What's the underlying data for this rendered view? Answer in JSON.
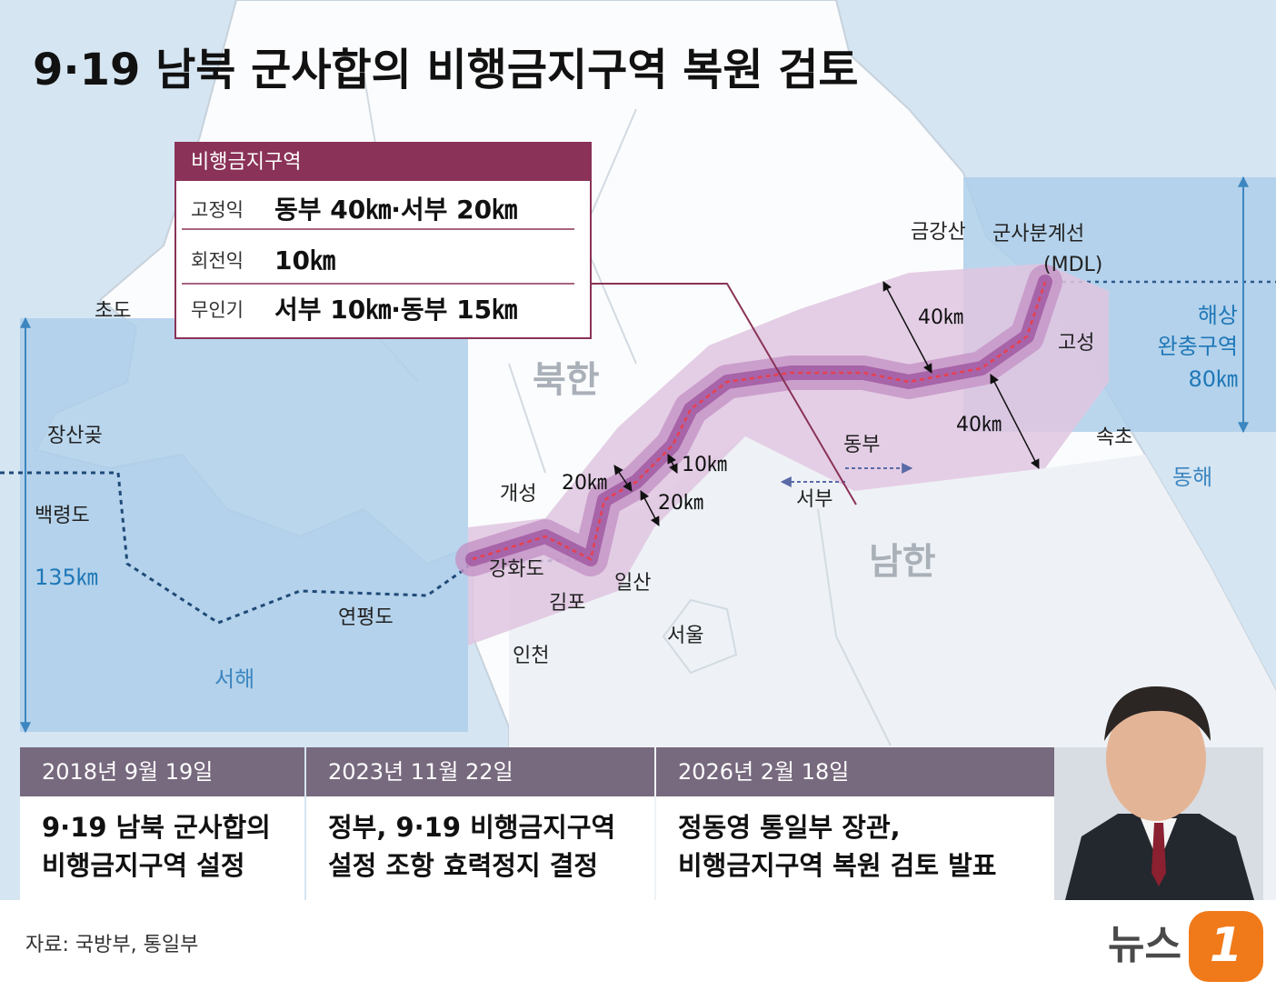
{
  "title": "9·19 남북 군사합의 비행금지구역 복원 검토",
  "legend_box": {
    "header": "비행금지구역",
    "rows": [
      {
        "label": "고정익",
        "value": "동부 40㎞·서부 20㎞"
      },
      {
        "label": "회전익",
        "value": "10㎞"
      },
      {
        "label": "무인기",
        "value": "서부 10㎞·동부 15㎞"
      }
    ]
  },
  "map_labels": [
    "초도",
    "장산곶",
    "백령도",
    "135㎞",
    "서해",
    "연평도",
    "인천",
    "김포",
    "강화도",
    "개성",
    "일산",
    "서울",
    "북한",
    "남한",
    "금강산",
    "군사분계선",
    "(MDL)",
    "고성",
    "속초",
    "동해",
    "해상",
    "완충구역",
    "80㎞",
    "40㎞",
    "40㎞",
    "10㎞",
    "20㎞",
    "20㎞",
    "동부",
    "서부"
  ],
  "timeline": [
    {
      "date": "2018년 9월 19일",
      "lines": [
        "9·19 남북 군사합의",
        "비행금지구역 설정"
      ]
    },
    {
      "date": "2023년 11월 22일",
      "lines": [
        "정부, 9·19 비행금지구역",
        "설정 조항 효력정지 결정"
      ]
    },
    {
      "date": "2026년 2월 18일",
      "lines": [
        "정동영 통일부 장관,",
        "비행금지구역 복원 검토 발표"
      ]
    }
  ],
  "source": "자료: 국방부, 통일부",
  "logo": {
    "word": "뉴스",
    "mark": "1"
  }
}
